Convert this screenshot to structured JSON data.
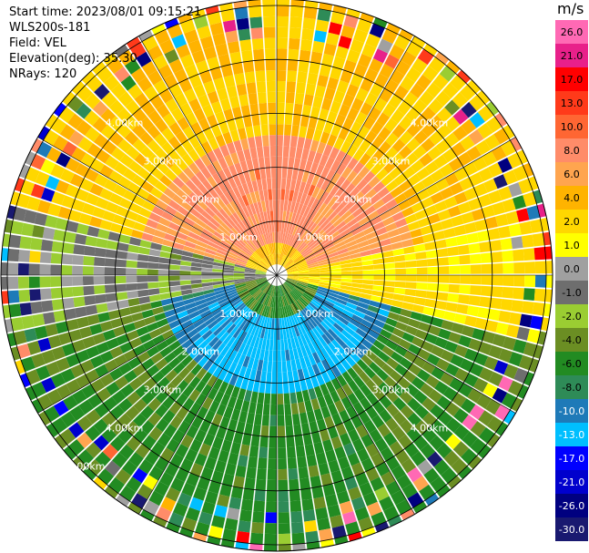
{
  "header": {
    "start_time": "Start time: 2023/08/01 09:15:21",
    "instrument": "WLS200s-181",
    "field": "Field: VEL",
    "elevation": "Elevation(deg): 35.30",
    "nrays": "NRays: 120"
  },
  "colorbar": {
    "unit": "m/s",
    "ticks": [
      "26.0",
      "21.0",
      "17.0",
      "13.0",
      "10.0",
      "8.0",
      "6.0",
      "4.0",
      "2.0",
      "1.0",
      "0.0",
      "-1.0",
      "-2.0",
      "-4.0",
      "-6.0",
      "-8.0",
      "-10.0",
      "-13.0",
      "-17.0",
      "-21.0",
      "-26.0",
      "-30.0"
    ],
    "colors": [
      "#ff69b4",
      "#e8208a",
      "#ff0000",
      "#ff3a1a",
      "#ff6633",
      "#ff8c69",
      "#ffa54f",
      "#ffb300",
      "#ffd700",
      "#ffff00",
      "#a0a0a0",
      "#6e6e6e",
      "#9acd32",
      "#6b8e23",
      "#228b22",
      "#2e8b57",
      "#1e7ab8",
      "#00bfff",
      "#0000ff",
      "#0000cd",
      "#000080",
      "#191970"
    ]
  },
  "chart_data": {
    "type": "heatmap",
    "projection": "polar PPI scan",
    "field": "VEL",
    "n_rays": 120,
    "elevation_deg": 35.3,
    "range_ring_labels": [
      "1.00km",
      "2.00km",
      "3.00km",
      "4.00km",
      "5.00km"
    ],
    "range_max_km": 5.8,
    "colormap_unit": "m/s",
    "structure_summary": {
      "north_sector_inner": "positive 6–10 m/s (orange/salmon)",
      "north_sector_outer": "positive 2–4 m/s (yellow)",
      "east_sector": "positive 2–4 m/s (yellow)",
      "south_sector": "negative -2 to -6 m/s (green)",
      "south_core": "negative -8 to -13 m/s (blue)",
      "west_sector": "near zero to -2 m/s (gray / yellow-green)",
      "outer_ring_km": "beyond ~5 km noisy multicolor"
    }
  }
}
